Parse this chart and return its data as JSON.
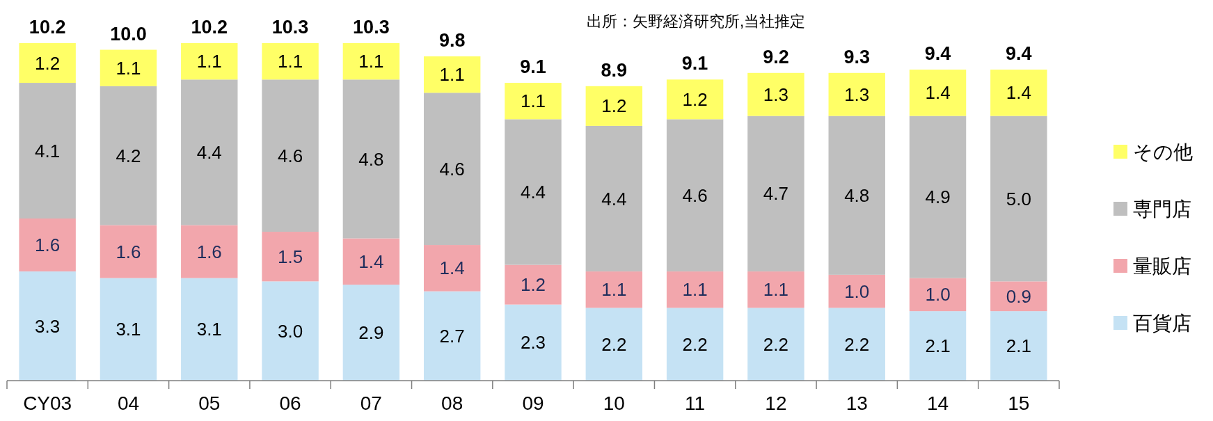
{
  "chart_data": {
    "type": "bar",
    "stacked": true,
    "legend": "right",
    "annotations": [
      "出所：矢野経済研究所,当社推定"
    ],
    "categories": [
      "CY03",
      "04",
      "05",
      "06",
      "07",
      "08",
      "09",
      "10",
      "11",
      "12",
      "13",
      "14",
      "15"
    ],
    "series": [
      {
        "name": "百貨店",
        "color": "#c5e2f4",
        "values": [
          3.3,
          3.1,
          3.1,
          3.0,
          2.9,
          2.7,
          2.3,
          2.2,
          2.2,
          2.2,
          2.2,
          2.1,
          2.1
        ],
        "value_labels": [
          "3.3",
          "3.1",
          "3.1",
          "3.0",
          "2.9",
          "2.7",
          "2.3",
          "2.2",
          "2.2",
          "2.2",
          "2.2",
          "2.1",
          "2.1"
        ]
      },
      {
        "name": "量販店",
        "color": "#f2a6ac",
        "values": [
          1.6,
          1.6,
          1.6,
          1.5,
          1.4,
          1.4,
          1.2,
          1.1,
          1.1,
          1.1,
          1.0,
          1.0,
          0.9
        ],
        "value_labels": [
          "1.6",
          "1.6",
          "1.6",
          "1.5",
          "1.4",
          "1.4",
          "1.2",
          "1.1",
          "1.1",
          "1.1",
          "1.0",
          "1.0",
          "0.9"
        ]
      },
      {
        "name": "専門店",
        "color": "#bfbfbf",
        "values": [
          4.1,
          4.2,
          4.4,
          4.6,
          4.8,
          4.6,
          4.4,
          4.4,
          4.6,
          4.7,
          4.8,
          4.9,
          5.0
        ],
        "value_labels": [
          "4.1",
          "4.2",
          "4.4",
          "4.6",
          "4.8",
          "4.6",
          "4.4",
          "4.4",
          "4.6",
          "4.7",
          "4.8",
          "4.9",
          "5.0"
        ]
      },
      {
        "name": "その他",
        "color": "#ffff66",
        "values": [
          1.2,
          1.1,
          1.1,
          1.1,
          1.1,
          1.1,
          1.1,
          1.2,
          1.2,
          1.3,
          1.3,
          1.4,
          1.4
        ],
        "value_labels": [
          "1.2",
          "1.1",
          "1.1",
          "1.1",
          "1.1",
          "1.1",
          "1.1",
          "1.2",
          "1.2",
          "1.3",
          "1.3",
          "1.4",
          "1.4"
        ]
      }
    ],
    "totals": [
      "10.2",
      "10.0",
      "10.2",
      "10.3",
      "10.3",
      "9.8",
      "9.1",
      "8.9",
      "9.1",
      "9.2",
      "9.3",
      "9.4",
      "9.4"
    ]
  }
}
